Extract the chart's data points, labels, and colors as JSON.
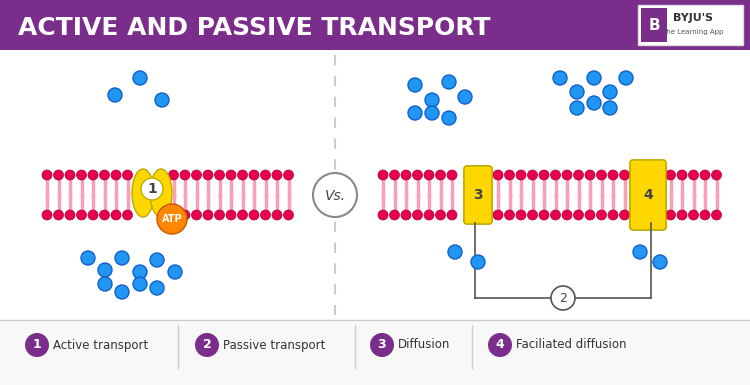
{
  "title": "ACTIVE AND PASSIVE TRANSPORT",
  "title_bg": "#7B2D8B",
  "title_color": "#FFFFFF",
  "bg_color": "#FFFFFF",
  "legend_items": [
    {
      "num": "1",
      "label": "Active transport"
    },
    {
      "num": "2",
      "label": "Passive transport"
    },
    {
      "num": "3",
      "label": "Diffusion"
    },
    {
      "num": "4",
      "label": "Faciliated diffusion"
    }
  ],
  "legend_color": "#7B2D8B",
  "membrane_color": "#E8004C",
  "tail_color": "#F8A0B8",
  "channel_color_yellow": "#FFD700",
  "channel_color_orange": "#FF8800",
  "molecule_color": "#2196F3",
  "molecule_edge": "#1060CC",
  "divider_color": "#CCCCCC",
  "footer_line_color": "#CCCCCC",
  "sep_color": "#CCCCCC",
  "vs_color": "#555555",
  "bracket_color": "#555555"
}
